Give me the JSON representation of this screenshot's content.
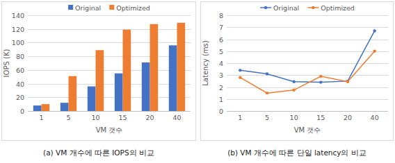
{
  "chart_data": [
    {
      "type": "bar",
      "title": "(a) VM 개수에 따른 IOPS의 비교",
      "x_label": "VM 갯수",
      "y_label": "IOPS (K)",
      "categories": [
        "1",
        "5",
        "10",
        "15",
        "20",
        "40"
      ],
      "series": [
        {
          "name": "Original",
          "color": "#4472c4",
          "values": [
            8,
            12,
            36,
            55,
            71,
            96
          ]
        },
        {
          "name": "Optimized",
          "color": "#ed7d31",
          "values": [
            10,
            51,
            89,
            119,
            127,
            129
          ]
        }
      ],
      "ylim": [
        0,
        140
      ],
      "yticks": [
        0,
        20,
        40,
        60,
        80,
        100,
        120,
        140
      ],
      "grid": true,
      "legend": "top"
    },
    {
      "type": "line",
      "title": "(b) VM 개수에 따른 단일 latency의 비교",
      "x_label": "VM 갯수",
      "y_label": "Latency (ms)",
      "categories": [
        "1",
        "5",
        "10",
        "15",
        "20",
        "40"
      ],
      "series": [
        {
          "name": "Original",
          "color": "#4472c4",
          "marker": "circle",
          "values": [
            3.4,
            3.1,
            2.45,
            2.4,
            2.5,
            6.7
          ]
        },
        {
          "name": "Optimized",
          "color": "#ed7d31",
          "marker": "circle",
          "values": [
            2.8,
            1.5,
            1.75,
            2.9,
            2.45,
            5.0
          ]
        }
      ],
      "ylim": [
        0,
        8
      ],
      "yticks": [
        0,
        1,
        2,
        3,
        4,
        5,
        6,
        7,
        8
      ],
      "grid": true,
      "legend": "top"
    }
  ]
}
